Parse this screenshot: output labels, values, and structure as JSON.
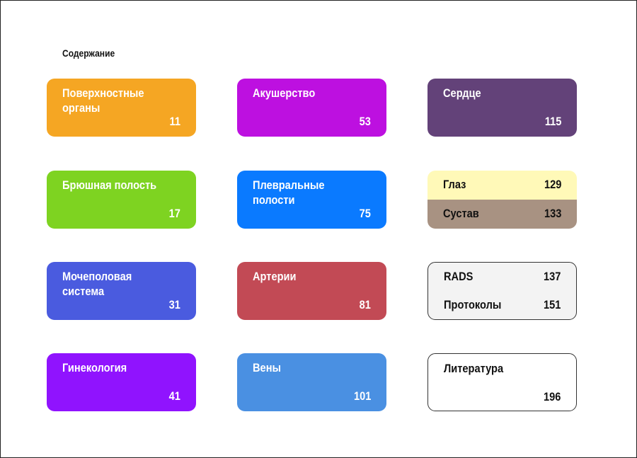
{
  "heading": "Содержание",
  "columns": [
    [
      {
        "name": "Поверхностные\nорганы",
        "page": "11",
        "color": "#F5A623"
      },
      {
        "name": "Брюшная полость",
        "page": "17",
        "color": "#7ED321"
      },
      {
        "name": "Мочеполовая\nсистема",
        "page": "31",
        "color": "#4A5BDF"
      },
      {
        "name": "Гинекология",
        "page": "41",
        "color": "#9013FE"
      }
    ],
    [
      {
        "name": "Акушерство",
        "page": "53",
        "color": "#BD10E0"
      },
      {
        "name": "Плевральные\nполости",
        "page": "75",
        "color": "#0A7AFF"
      },
      {
        "name": "Артерии",
        "page": "81",
        "color": "#C24A55"
      },
      {
        "name": "Вены",
        "page": "101",
        "color": "#4A90E2"
      }
    ],
    [
      {
        "name": "Сердце",
        "page": "115",
        "color": "#634279"
      },
      {
        "split": [
          {
            "name": "Глаз",
            "page": "129",
            "color": "#FFF9B8"
          },
          {
            "name": "Сустав",
            "page": "133",
            "color": "#A89282"
          }
        ]
      },
      {
        "list": [
          {
            "name": "RADS",
            "page": "137"
          },
          {
            "name": "Протоколы",
            "page": "151"
          }
        ],
        "color": "#F3F3F3"
      },
      {
        "name": "Литература",
        "page": "196",
        "color": "#FFFFFF"
      }
    ]
  ]
}
